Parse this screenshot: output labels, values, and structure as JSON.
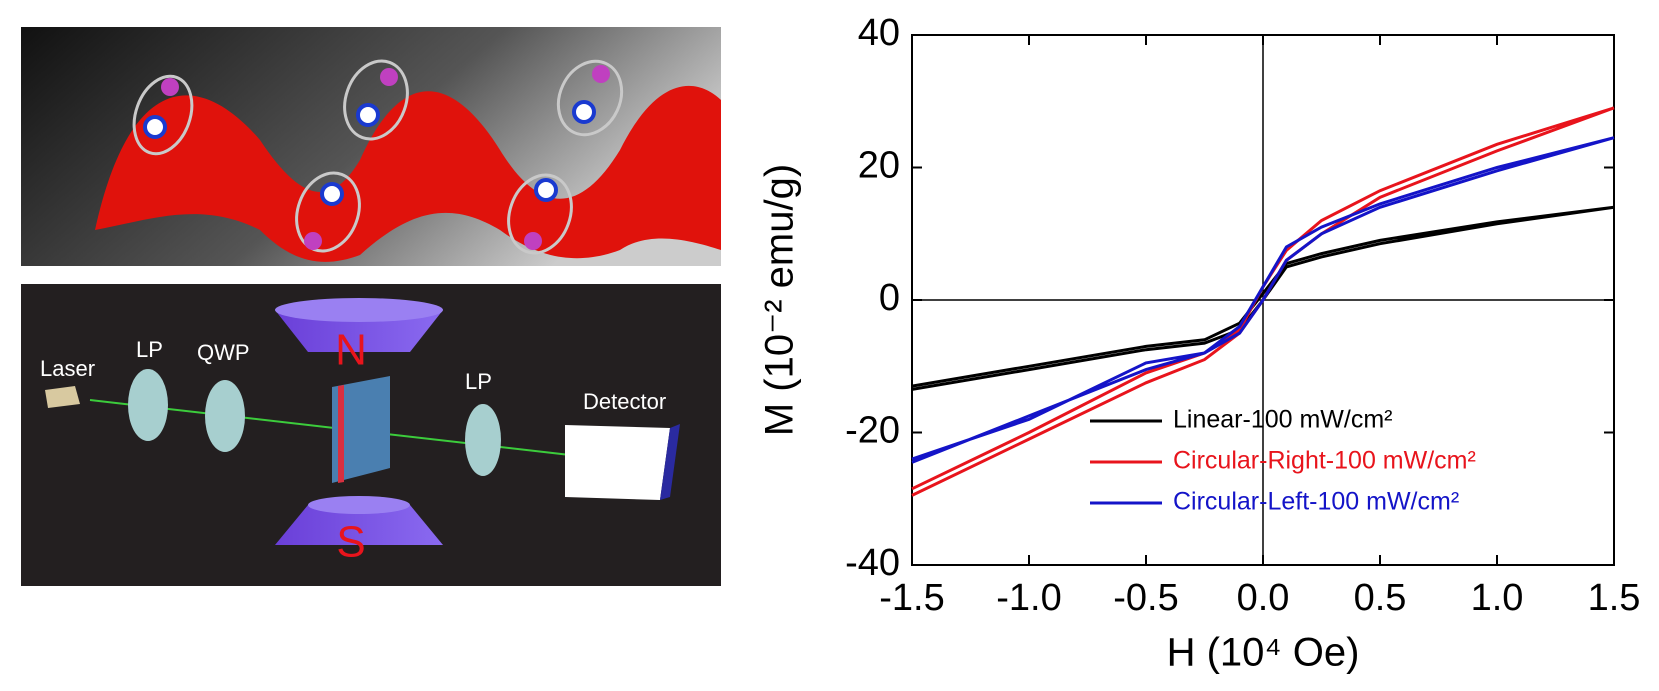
{
  "chart_data": {
    "type": "line",
    "xlabel": "H (10⁴ Oe)",
    "ylabel": "M (10⁻² emu/g)",
    "x": [
      -1.5,
      -1,
      -0.5,
      -0.25,
      -0.1,
      0,
      0.1,
      0.25,
      0.5,
      1,
      1.5,
      1,
      0.5,
      0.25,
      0.1,
      0,
      -0.1,
      -0.25,
      -0.5,
      -1,
      -1.5
    ],
    "series": [
      {
        "name": "Linear-100 mW/cm²",
        "color": "#000000",
        "values": [
          -13.5,
          -10.5,
          -7.5,
          -6.5,
          -4.5,
          0,
          5,
          6.5,
          8.5,
          11.5,
          14,
          11.8,
          9,
          7,
          5.5,
          1,
          -3.5,
          -6,
          -7,
          -10,
          -13
        ]
      },
      {
        "name": "Circular-Right-100 mW/cm²",
        "color": "#e8141c",
        "values": [
          -29.5,
          -21,
          -12.5,
          -9,
          -5,
          0,
          6,
          10,
          15.5,
          22.5,
          29,
          23.5,
          16.5,
          12,
          7.5,
          2,
          -4.5,
          -8,
          -11,
          -20,
          -28.5
        ]
      },
      {
        "name": "Circular-Left-100 mW/cm²",
        "color": "#1414c8",
        "values": [
          -24.5,
          -17.5,
          -10.5,
          -8,
          -5,
          0,
          6,
          10,
          14,
          19.5,
          24.5,
          20,
          14.5,
          11,
          8,
          2,
          -4,
          -8,
          -9.5,
          -18,
          -24
        ]
      }
    ],
    "xlim": [
      -1.5,
      1.5
    ],
    "xticks": [
      -1.5,
      {
        "value": -1,
        "label": "-1.0"
      },
      -0.5,
      {
        "value": 0,
        "label": "0.0"
      },
      0.5,
      {
        "value": 1,
        "label": "1.0"
      },
      1.5
    ],
    "ylim": [
      -40,
      40
    ],
    "yticks": [
      -40,
      -20,
      0,
      20,
      40
    ],
    "grid": false,
    "legend": "lower right"
  },
  "diagram": {
    "labels": [
      "Laser",
      "LP",
      "QWP",
      "N",
      "S",
      "LP",
      "Detector"
    ]
  }
}
